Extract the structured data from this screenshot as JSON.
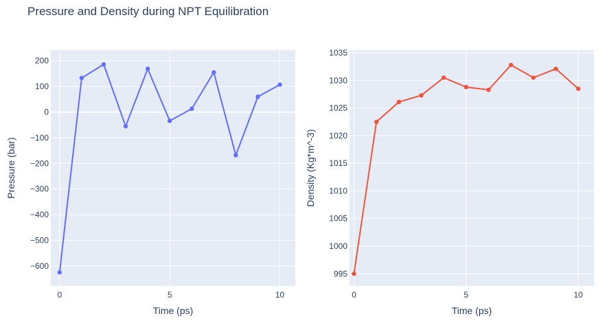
{
  "figure": {
    "title": "Pressure and Density during NPT Equilibration"
  },
  "chart_data": [
    {
      "type": "line",
      "xlabel": "Time (ps)",
      "ylabel": "Pressure (bar)",
      "x": [
        0,
        1,
        2,
        3,
        4,
        5,
        6,
        7,
        8,
        9,
        10
      ],
      "series": [
        {
          "values": [
            -625,
            133,
            186,
            -55,
            169,
            -34,
            13,
            155,
            -168,
            60,
            107
          ],
          "color": "#636efa"
        }
      ],
      "xlim": [
        -0.4,
        10.7
      ],
      "ylim": [
        -678,
        242
      ],
      "x_ticks": [
        0,
        5,
        10
      ],
      "x_tick_labels": [
        "0",
        "5",
        "10"
      ],
      "y_ticks": [
        -600,
        -500,
        -400,
        -300,
        -200,
        -100,
        0,
        100,
        200
      ],
      "y_tick_labels": [
        "−600",
        "−500",
        "−400",
        "−300",
        "−200",
        "−100",
        "0",
        "100",
        "200"
      ],
      "grid": true,
      "plot_bgcolor": "#e5ecf6"
    },
    {
      "type": "line",
      "xlabel": "Time (ps)",
      "ylabel": "Density (Kg*m^-3)",
      "x": [
        0,
        1,
        2,
        3,
        4,
        5,
        6,
        7,
        8,
        9,
        10
      ],
      "series": [
        {
          "values": [
            995.0,
            1022.5,
            1026.1,
            1027.3,
            1030.5,
            1028.8,
            1028.3,
            1032.8,
            1030.5,
            1032.1,
            1028.5
          ],
          "color": "#ef553b"
        }
      ],
      "xlim": [
        -0.2,
        10.7
      ],
      "ylim": [
        992.8,
        1035.5
      ],
      "x_ticks": [
        0,
        5,
        10
      ],
      "x_tick_labels": [
        "0",
        "5",
        "10"
      ],
      "y_ticks": [
        995,
        1000,
        1005,
        1010,
        1015,
        1020,
        1025,
        1030,
        1035
      ],
      "y_tick_labels": [
        "995",
        "1000",
        "1005",
        "1010",
        "1015",
        "1020",
        "1025",
        "1030",
        "1035"
      ],
      "grid": true,
      "plot_bgcolor": "#e5ecf6"
    }
  ]
}
